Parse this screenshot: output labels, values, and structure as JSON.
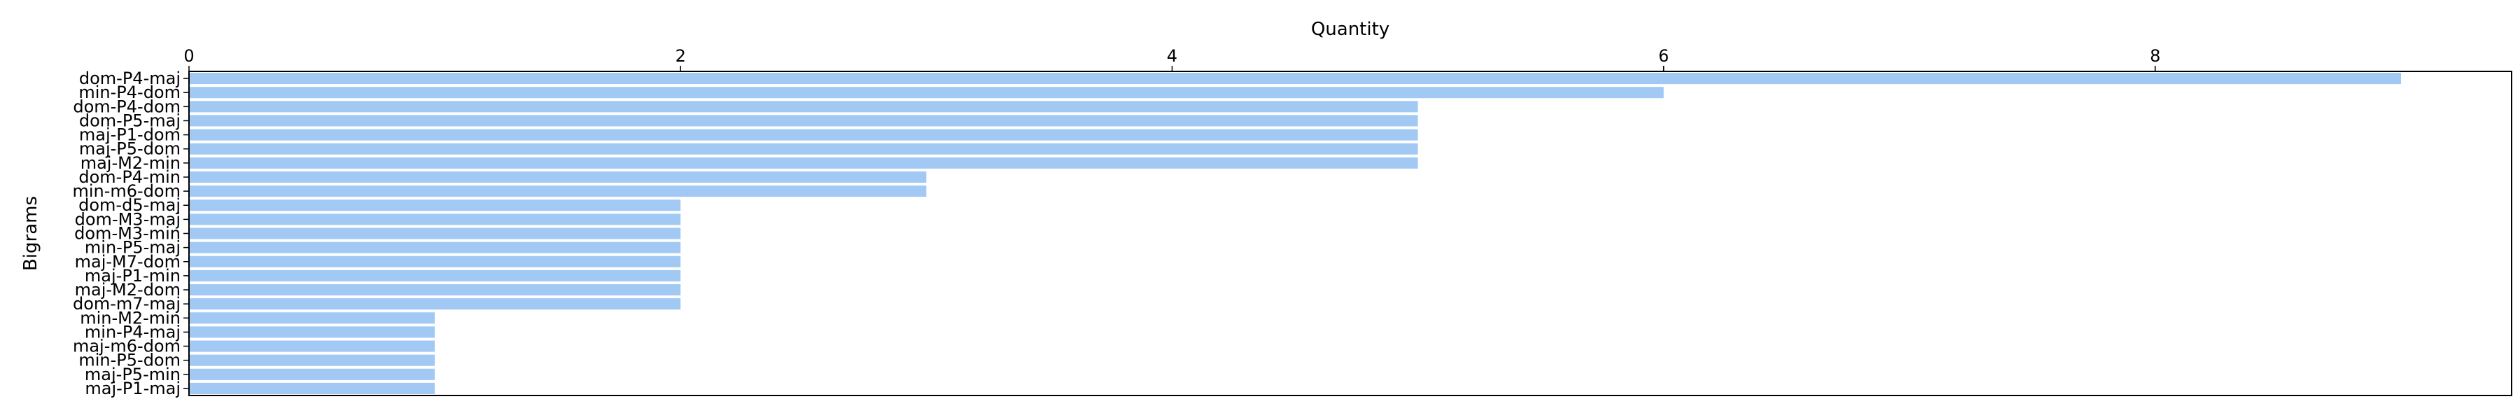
{
  "chart_data": {
    "type": "bar",
    "orientation": "horizontal",
    "xlabel": "Quantity",
    "ylabel": "Bigrams",
    "x_axis_position": "top",
    "xlim": [
      0,
      9.45
    ],
    "xticks": [
      0,
      2,
      4,
      6,
      8
    ],
    "grid": false,
    "bar_color": "#a1c9f4",
    "categories": [
      "dom-P4-maj",
      "min-P4-dom",
      "dom-P4-dom",
      "dom-P5-maj",
      "maj-P1-dom",
      "maj-P5-dom",
      "maj-M2-min",
      "dom-P4-min",
      "min-m6-dom",
      "dom-d5-maj",
      "dom-M3-maj",
      "dom-M3-min",
      "min-P5-maj",
      "maj-M7-dom",
      "maj-P1-min",
      "maj-M2-dom",
      "dom-m7-maj",
      "min-M2-min",
      "min-P4-maj",
      "maj-m6-dom",
      "min-P5-dom",
      "maj-P5-min",
      "maj-P1-maj"
    ],
    "values": [
      9,
      6,
      5,
      5,
      5,
      5,
      5,
      3,
      3,
      2,
      2,
      2,
      2,
      2,
      2,
      2,
      2,
      1,
      1,
      1,
      1,
      1,
      1
    ]
  }
}
